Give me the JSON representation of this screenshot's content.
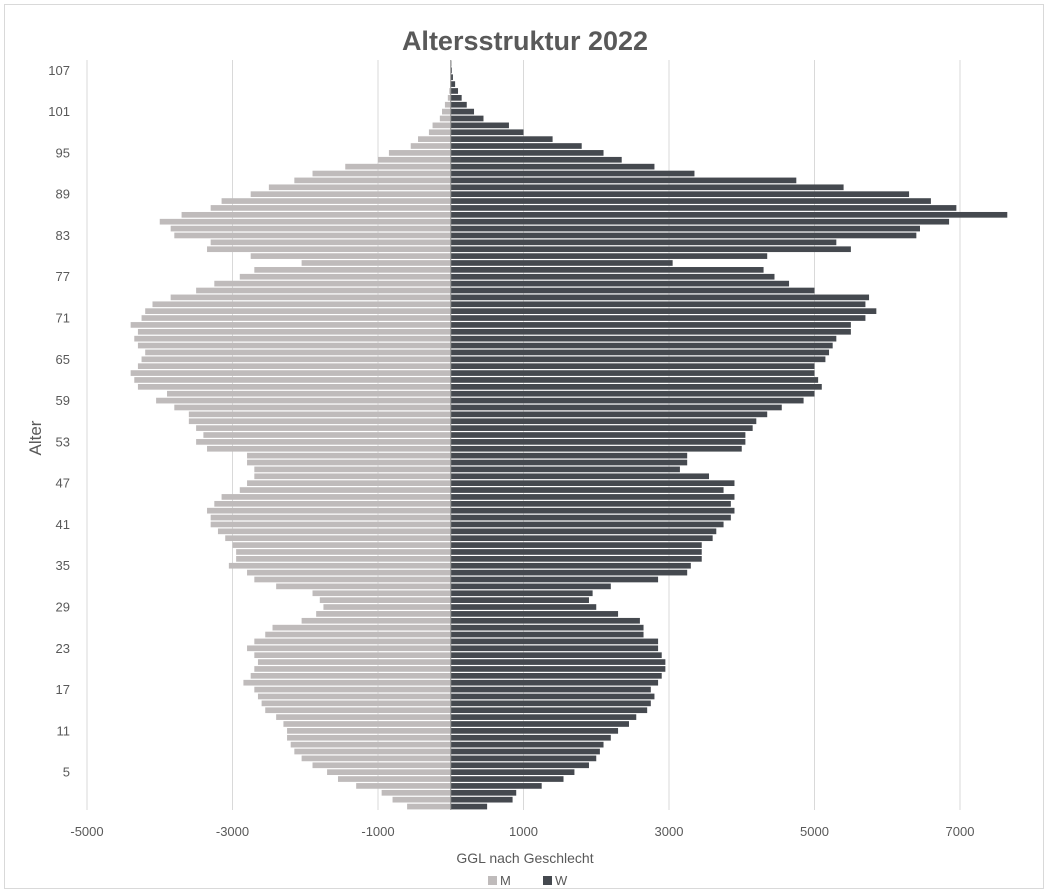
{
  "chart_data": {
    "type": "bar",
    "orientation": "horizontal",
    "title": "Altersstruktur 2022",
    "xlabel": "GGL nach Geschlecht",
    "ylabel": "Alter",
    "xlim": [
      -5000,
      8000
    ],
    "xticks": [
      "-5000",
      "-3000",
      "-1000",
      "1000",
      "3000",
      "5000",
      "7000"
    ],
    "xtick_values": [
      -5000,
      -3000,
      -1000,
      1000,
      3000,
      5000,
      7000
    ],
    "yticks": [
      "5",
      "11",
      "17",
      "23",
      "29",
      "35",
      "41",
      "47",
      "53",
      "59",
      "65",
      "71",
      "77",
      "83",
      "89",
      "95",
      "101",
      "107"
    ],
    "ages": [
      0,
      1,
      2,
      3,
      4,
      5,
      6,
      7,
      8,
      9,
      10,
      11,
      12,
      13,
      14,
      15,
      16,
      17,
      18,
      19,
      20,
      21,
      22,
      23,
      24,
      25,
      26,
      27,
      28,
      29,
      30,
      31,
      32,
      33,
      34,
      35,
      36,
      37,
      38,
      39,
      40,
      41,
      42,
      43,
      44,
      45,
      46,
      47,
      48,
      49,
      50,
      51,
      52,
      53,
      54,
      55,
      56,
      57,
      58,
      59,
      60,
      61,
      62,
      63,
      64,
      65,
      66,
      67,
      68,
      69,
      70,
      71,
      72,
      73,
      74,
      75,
      76,
      77,
      78,
      79,
      80,
      81,
      82,
      83,
      84,
      85,
      86,
      87,
      88,
      89,
      90,
      91,
      92,
      93,
      94,
      95,
      96,
      97,
      98,
      99,
      100,
      101,
      102,
      103,
      104,
      105,
      106,
      107,
      108
    ],
    "grid": true,
    "legend_position": "bottom",
    "series": [
      {
        "name": "M",
        "color": "#bfbbbb",
        "values": [
          -600,
          -800,
          -950,
          -1300,
          -1550,
          -1700,
          -1900,
          -2050,
          -2150,
          -2200,
          -2250,
          -2250,
          -2300,
          -2400,
          -2550,
          -2600,
          -2650,
          -2700,
          -2850,
          -2750,
          -2700,
          -2650,
          -2700,
          -2800,
          -2700,
          -2550,
          -2450,
          -2050,
          -1850,
          -1750,
          -1800,
          -1900,
          -2400,
          -2700,
          -2800,
          -3050,
          -2950,
          -2950,
          -3000,
          -3100,
          -3200,
          -3300,
          -3300,
          -3350,
          -3250,
          -3150,
          -2900,
          -2800,
          -2700,
          -2700,
          -2800,
          -2800,
          -3350,
          -3500,
          -3400,
          -3500,
          -3600,
          -3600,
          -3800,
          -4050,
          -3900,
          -4300,
          -4350,
          -4400,
          -4300,
          -4250,
          -4200,
          -4300,
          -4350,
          -4300,
          -4400,
          -4250,
          -4200,
          -4100,
          -3850,
          -3500,
          -3250,
          -2900,
          -2700,
          -2050,
          -2750,
          -3350,
          -3300,
          -3800,
          -3850,
          -4000,
          -3700,
          -3300,
          -3150,
          -2750,
          -2500,
          -2150,
          -1900,
          -1450,
          -1000,
          -850,
          -550,
          -450,
          -300,
          -250,
          -150,
          -120,
          -80,
          -40,
          -20,
          -10,
          -5,
          -3,
          -2
        ]
      },
      {
        "name": "W",
        "color": "#45494f",
        "values": [
          500,
          850,
          900,
          1250,
          1550,
          1700,
          1900,
          2000,
          2050,
          2100,
          2200,
          2300,
          2450,
          2550,
          2700,
          2750,
          2800,
          2750,
          2850,
          2900,
          2950,
          2950,
          2900,
          2850,
          2850,
          2650,
          2650,
          2600,
          2300,
          2000,
          1900,
          1950,
          2200,
          2850,
          3250,
          3300,
          3450,
          3450,
          3450,
          3600,
          3650,
          3750,
          3850,
          3900,
          3850,
          3900,
          3750,
          3900,
          3550,
          3150,
          3250,
          3250,
          4000,
          4050,
          4050,
          4150,
          4200,
          4350,
          4550,
          4850,
          5000,
          5100,
          5050,
          5000,
          5000,
          5150,
          5200,
          5250,
          5300,
          5500,
          5500,
          5700,
          5850,
          5700,
          5750,
          5000,
          4650,
          4450,
          4300,
          3050,
          4350,
          5500,
          5300,
          6400,
          6450,
          6850,
          7650,
          6950,
          6600,
          6300,
          5400,
          4750,
          3350,
          2800,
          2350,
          2100,
          1800,
          1400,
          1000,
          800,
          450,
          320,
          220,
          150,
          100,
          60,
          30,
          15,
          8
        ]
      }
    ]
  }
}
